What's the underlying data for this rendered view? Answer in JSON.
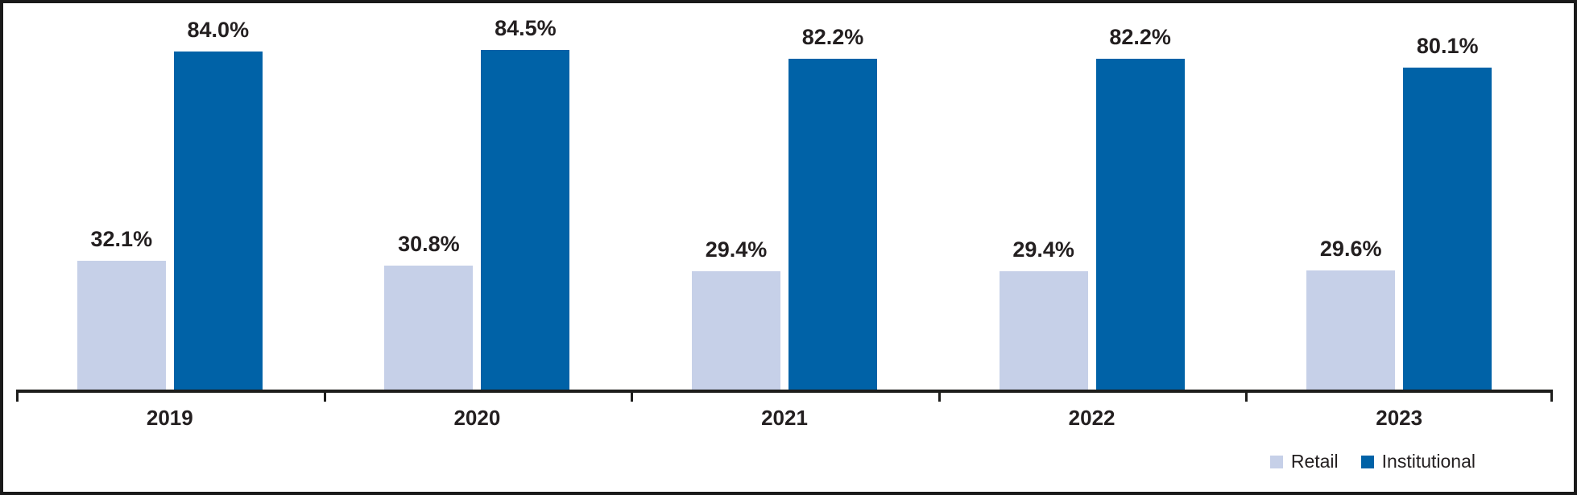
{
  "chart_data": {
    "type": "bar",
    "categories": [
      "2019",
      "2020",
      "2021",
      "2022",
      "2023"
    ],
    "series": [
      {
        "name": "Retail",
        "color": "#C6D0E8",
        "values": [
          32.1,
          30.8,
          29.4,
          29.4,
          29.6
        ],
        "labels": [
          "32.1%",
          "30.8%",
          "29.4%",
          "29.4%",
          "29.6%"
        ]
      },
      {
        "name": "Institutional",
        "color": "#0062A7",
        "values": [
          84.0,
          84.5,
          82.2,
          82.2,
          80.1
        ],
        "labels": [
          "84.0%",
          "84.5%",
          "82.2%",
          "82.2%",
          "80.1%"
        ]
      }
    ],
    "title": "",
    "xlabel": "",
    "ylabel": "",
    "ylim": [
      0,
      100
    ],
    "grid": false,
    "value_suffix": "%",
    "legend_position": "bottom-right"
  },
  "colors": {
    "axis": "#1D1D1B",
    "text": "#231F20",
    "frame": "#1A1A1A",
    "background": "#FFFFFF"
  }
}
